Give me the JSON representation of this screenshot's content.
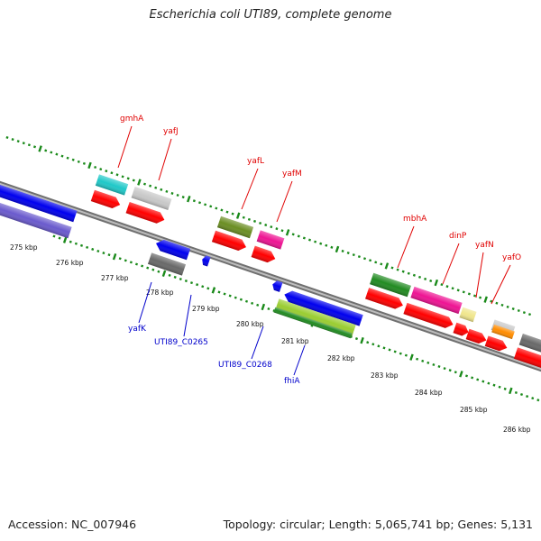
{
  "title": "Escherichia coli UTI89, complete genome",
  "footer": {
    "accession": "Accession: NC_007946",
    "topology": "Topology: circular; Length: 5,065,741 bp; Genes: 5,131"
  },
  "colors": {
    "backbone": "#8c8c8c",
    "tick_green": "#1a8a1a",
    "label_top": "#e00000",
    "label_bottom": "#0000cc",
    "cds_red": "#ff0000"
  },
  "scale_ticks": [
    "275 kbp",
    "276 kbp",
    "277 kbp",
    "278 kbp",
    "279 kbp",
    "280 kbp",
    "281 kbp",
    "282 kbp",
    "283 kbp",
    "284 kbp",
    "285 kbp",
    "286 kbp"
  ],
  "top_labels": [
    {
      "name": "gmhA"
    },
    {
      "name": "yafJ"
    },
    {
      "name": "yafL"
    },
    {
      "name": "yafM"
    },
    {
      "name": "mbhA"
    },
    {
      "name": "dinP"
    },
    {
      "name": "yafN"
    },
    {
      "name": "yafO"
    }
  ],
  "bottom_labels": [
    {
      "name": "yafK"
    },
    {
      "name": "UTI89_C0265"
    },
    {
      "name": "UTI89_C0268"
    },
    {
      "name": "fhiA"
    }
  ],
  "features": [
    {
      "name": "blue-gene-left",
      "color": "#0000ee"
    },
    {
      "name": "purple-gene-left",
      "color": "#6a5acd"
    },
    {
      "name": "gmhA-gene",
      "color": "#20c8c8"
    },
    {
      "name": "yafJ-gene",
      "color": "#c8c8c8"
    },
    {
      "name": "yafL-gene",
      "color": "#6b8e23"
    },
    {
      "name": "yafM-gene",
      "color": "#ee1493"
    },
    {
      "name": "mbhA-gene",
      "color": "#228b22"
    },
    {
      "name": "dinP-gene",
      "color": "#ee1493"
    },
    {
      "name": "yafN-gene",
      "color": "#f0e68c"
    },
    {
      "name": "yafO-gene",
      "color": "#c8c8c8"
    },
    {
      "name": "orange-gene",
      "color": "#ff8c00"
    },
    {
      "name": "gray-gene-right",
      "color": "#696969"
    },
    {
      "name": "yafK-gene",
      "color": "#0000ee"
    },
    {
      "name": "UTI89_C0265-gene",
      "color": "#696969"
    },
    {
      "name": "small-blue-gene",
      "color": "#0000ee"
    },
    {
      "name": "UTI89_C0268-gene",
      "color": "#0000ee"
    },
    {
      "name": "fhiA-gene",
      "color": "#9acd32"
    }
  ]
}
